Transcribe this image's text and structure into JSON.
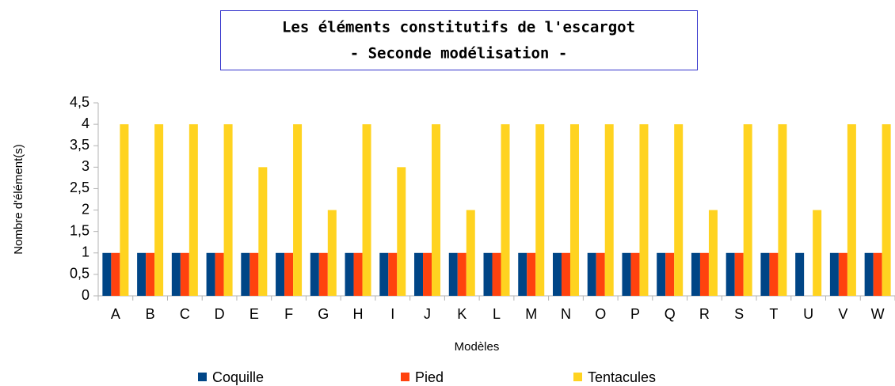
{
  "chart_data": {
    "type": "bar",
    "title": "Les éléments constitutifs de l'escargot",
    "subtitle": "- Seconde modélisation -",
    "x_label": "Modèles",
    "y_label": "Nombre d'élément(s)",
    "categories": [
      "A",
      "B",
      "C",
      "D",
      "E",
      "F",
      "G",
      "H",
      "I",
      "J",
      "K",
      "L",
      "M",
      "N",
      "O",
      "P",
      "Q",
      "R",
      "S",
      "T",
      "U",
      "V",
      "W"
    ],
    "series": [
      {
        "name": "Coquille",
        "color": "#004586",
        "values": [
          1,
          1,
          1,
          1,
          1,
          1,
          1,
          1,
          1,
          1,
          1,
          1,
          1,
          1,
          1,
          1,
          1,
          1,
          1,
          1,
          1,
          1,
          1
        ]
      },
      {
        "name": "Pied",
        "color": "#ff420e",
        "values": [
          1,
          1,
          1,
          1,
          1,
          1,
          1,
          1,
          1,
          1,
          1,
          1,
          1,
          1,
          1,
          1,
          1,
          1,
          1,
          1,
          0,
          1,
          1
        ]
      },
      {
        "name": "Tentacules",
        "color": "#ffd320",
        "values": [
          4,
          4,
          4,
          4,
          3,
          4,
          2,
          4,
          3,
          4,
          2,
          4,
          4,
          4,
          4,
          4,
          4,
          2,
          4,
          4,
          2,
          4,
          4
        ]
      }
    ],
    "ylim": [
      0,
      4.5
    ],
    "yticks": [
      0,
      {
        "value": 0.5,
        "label": "0,5"
      },
      1,
      {
        "value": 1.5,
        "label": "1,5"
      },
      2,
      {
        "value": 2.5,
        "label": "2,5"
      },
      3,
      {
        "value": 3.5,
        "label": "3,5"
      },
      4,
      {
        "value": 4.5,
        "label": "4,5"
      }
    ],
    "grid": false,
    "legend": "bottom"
  }
}
